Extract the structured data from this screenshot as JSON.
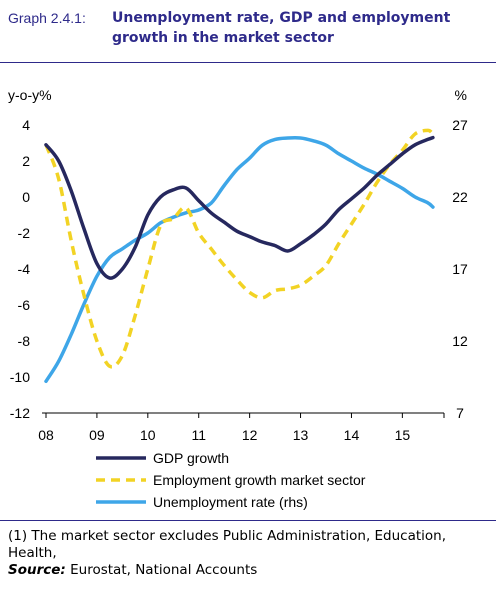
{
  "header": {
    "graph_number": "Graph 2.4.1:",
    "title": "Unemployment rate, GDP and employment growth in the market sector"
  },
  "chart_data": {
    "type": "line",
    "left_axis": {
      "unit_label": "y-o-y%",
      "ylim": [
        -12,
        4
      ],
      "ticks": [
        "4",
        "2",
        "0",
        "-2",
        "-4",
        "-6",
        "-8",
        "-10",
        "-12"
      ]
    },
    "right_axis": {
      "unit_label": "%",
      "ylim": [
        7,
        27
      ],
      "ticks": [
        "27",
        "22",
        "17",
        "12",
        "7"
      ]
    },
    "x_axis": {
      "range": [
        2008,
        2015.7
      ],
      "tick_labels": [
        "08",
        "09",
        "10",
        "11",
        "12",
        "13",
        "14",
        "15"
      ]
    },
    "grid": false,
    "legend_position": "bottom",
    "series": [
      {
        "name": "GDP growth",
        "axis": "left",
        "color": "#26285e",
        "style": "solid",
        "x": [
          2008.0,
          2008.25,
          2008.5,
          2008.75,
          2009.0,
          2009.25,
          2009.5,
          2009.75,
          2010.0,
          2010.25,
          2010.5,
          2010.75,
          2011.0,
          2011.25,
          2011.5,
          2011.75,
          2012.0,
          2012.25,
          2012.5,
          2012.75,
          2013.0,
          2013.25,
          2013.5,
          2013.75,
          2014.0,
          2014.25,
          2014.5,
          2014.75,
          2015.0,
          2015.25,
          2015.5,
          2015.6
        ],
        "values": [
          2.9,
          2.0,
          0.3,
          -1.8,
          -3.7,
          -4.5,
          -4.0,
          -2.8,
          -1.0,
          0.0,
          0.4,
          0.5,
          -0.2,
          -0.9,
          -1.4,
          -1.9,
          -2.2,
          -2.5,
          -2.7,
          -3.0,
          -2.6,
          -2.1,
          -1.5,
          -0.7,
          -0.1,
          0.5,
          1.2,
          1.8,
          2.4,
          2.9,
          3.2,
          3.3
        ]
      },
      {
        "name": "Employment growth market sector",
        "axis": "left",
        "color": "#f2d324",
        "style": "dashed",
        "x": [
          2008.0,
          2008.25,
          2008.5,
          2008.75,
          2009.0,
          2009.25,
          2009.5,
          2009.75,
          2010.0,
          2010.25,
          2010.5,
          2010.75,
          2011.0,
          2011.25,
          2011.5,
          2011.75,
          2012.0,
          2012.25,
          2012.5,
          2012.75,
          2013.0,
          2013.25,
          2013.5,
          2013.75,
          2014.0,
          2014.25,
          2014.5,
          2014.75,
          2015.0,
          2015.25,
          2015.5,
          2015.6
        ],
        "values": [
          2.9,
          1.0,
          -2.5,
          -5.5,
          -8.0,
          -9.4,
          -8.8,
          -6.6,
          -4.0,
          -1.6,
          -1.2,
          -0.6,
          -2.0,
          -2.9,
          -3.8,
          -4.6,
          -5.3,
          -5.6,
          -5.2,
          -5.1,
          -4.9,
          -4.4,
          -3.8,
          -2.6,
          -1.5,
          -0.4,
          0.8,
          1.8,
          2.6,
          3.5,
          3.7,
          3.5
        ]
      },
      {
        "name": "Unemployment rate (rhs)",
        "axis": "right",
        "color": "#3ea6e8",
        "style": "solid",
        "x": [
          2008.0,
          2008.25,
          2008.5,
          2008.75,
          2009.0,
          2009.25,
          2009.5,
          2009.75,
          2010.0,
          2010.25,
          2010.5,
          2010.75,
          2011.0,
          2011.25,
          2011.5,
          2011.75,
          2012.0,
          2012.25,
          2012.5,
          2012.75,
          2013.0,
          2013.25,
          2013.5,
          2013.75,
          2014.0,
          2014.25,
          2014.5,
          2014.75,
          2015.0,
          2015.25,
          2015.5,
          2015.6
        ],
        "values": [
          9.2,
          10.6,
          12.5,
          14.6,
          16.5,
          17.8,
          18.4,
          19.0,
          19.5,
          20.2,
          20.6,
          20.9,
          21.1,
          21.6,
          22.8,
          23.9,
          24.7,
          25.6,
          26.0,
          26.1,
          26.1,
          25.9,
          25.6,
          25.0,
          24.5,
          24.0,
          23.6,
          23.1,
          22.6,
          22.0,
          21.6,
          21.3
        ]
      }
    ]
  },
  "notes": {
    "footnote": "(1) The market sector excludes Public Administration, Education, Health,",
    "source_label": "Source:",
    "source_text": " Eurostat, National Accounts"
  }
}
